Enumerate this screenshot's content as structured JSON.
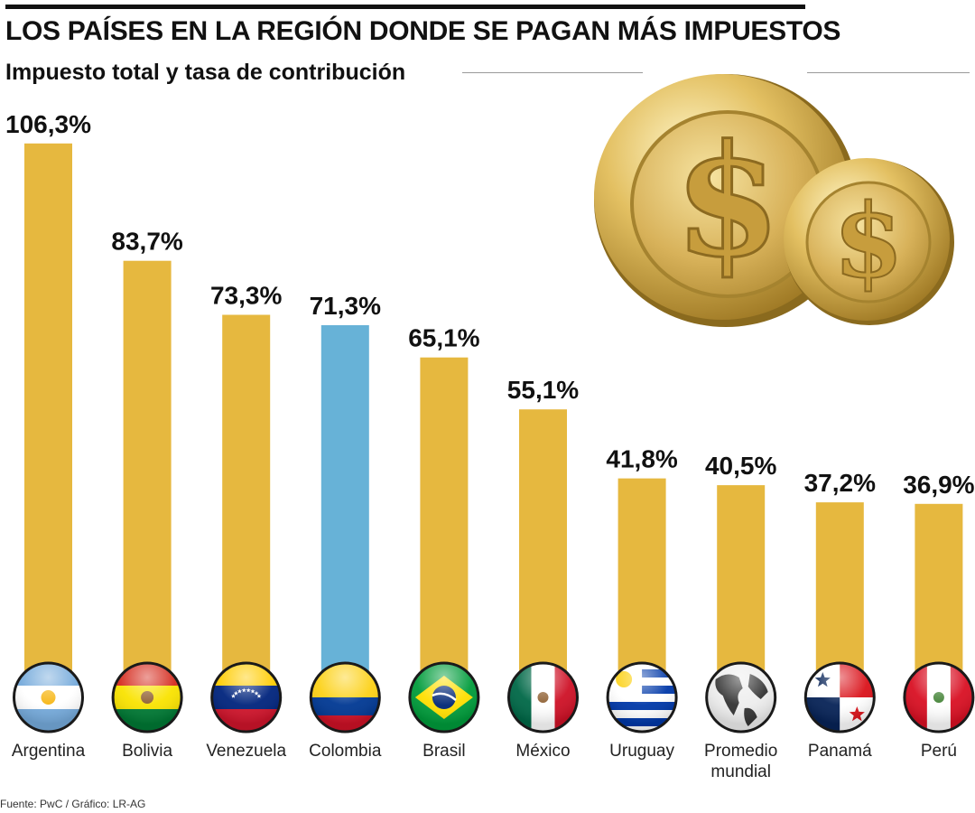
{
  "header": {
    "title": "LOS PAÍSES EN LA REGIÓN DONDE SE PAGAN MÁS IMPUESTOS",
    "subtitle": "Impuesto total y tasa de contribución"
  },
  "source": "Fuente: PwC / Gráfico: LR-AG",
  "colors": {
    "bar": "#E6B83F",
    "highlight": "#67B2D7"
  },
  "icons": [
    "dollar-coin-icon",
    "dollar-coin-small-icon",
    "globe-icon"
  ],
  "chart_data": {
    "type": "bar",
    "categories": [
      "Argentina",
      "Bolivia",
      "Venezuela",
      "Colombia",
      "Brasil",
      "México",
      "Uruguay",
      "Promedio mundial",
      "Panamá",
      "Perú"
    ],
    "values": [
      106.3,
      83.7,
      73.3,
      71.3,
      65.1,
      55.1,
      41.8,
      40.5,
      37.2,
      36.9
    ],
    "value_labels": [
      "106,3%",
      "83,7%",
      "73,3%",
      "71,3%",
      "65,1%",
      "55,1%",
      "41,8%",
      "40,5%",
      "37,2%",
      "36,9%"
    ],
    "category_lines": [
      [
        "Argentina"
      ],
      [
        "Bolivia"
      ],
      [
        "Venezuela"
      ],
      [
        "Colombia"
      ],
      [
        "Brasil"
      ],
      [
        "México"
      ],
      [
        "Uruguay"
      ],
      [
        "Promedio",
        "mundial"
      ],
      [
        "Panamá"
      ],
      [
        "Perú"
      ]
    ],
    "highlight": "Colombia",
    "title": "",
    "xlabel": "",
    "ylabel": "",
    "ylim": [
      0,
      110
    ],
    "grid": false,
    "legend": "none"
  }
}
